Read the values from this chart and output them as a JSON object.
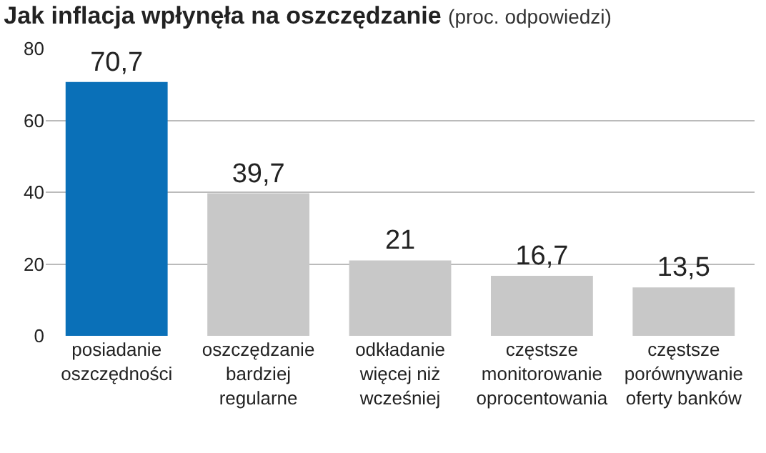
{
  "chart_data": {
    "type": "bar",
    "title": "Jak inflacja wpłynęła na oszczędzanie",
    "subtitle": "(proc. odpowiedzi)",
    "categories": [
      "posiadanie\noszczędności",
      "oszczędzanie\nbardziej\nregularne",
      "odkładanie\nwięcej niż\nwcześniej",
      "częstsze\nmonitorowanie\noprocentowania",
      "częstsze\nporównywanie\noferty banków"
    ],
    "values": [
      70.7,
      39.7,
      21,
      16.7,
      13.5
    ],
    "colors": [
      "#0a70b8",
      "#c8c8c8",
      "#c8c8c8",
      "#c8c8c8",
      "#c8c8c8"
    ],
    "value_labels": [
      "70,7",
      "39,7",
      "21",
      "16,7",
      "13,5"
    ],
    "ylim": [
      0,
      80
    ],
    "yticks": [
      0,
      20,
      40,
      60,
      80
    ],
    "grid": "y",
    "legend": false
  }
}
